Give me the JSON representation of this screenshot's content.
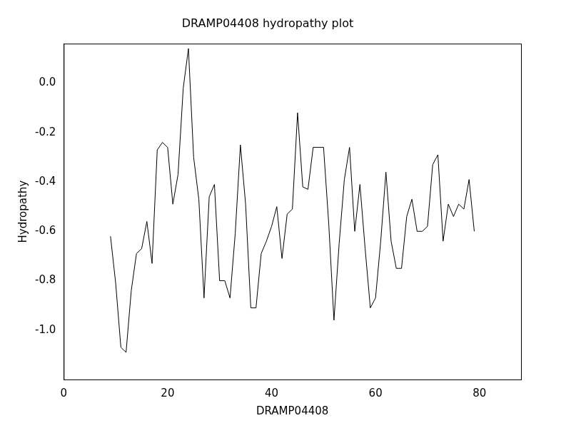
{
  "chart_data": {
    "type": "line",
    "title": "DRAMP04408 hydropathy plot",
    "x_label": "DRAMP04408",
    "y_label": "Hydropathy",
    "x": [
      9,
      10,
      11,
      12,
      13,
      14,
      15,
      16,
      17,
      18,
      19,
      20,
      21,
      22,
      23,
      24,
      25,
      26,
      27,
      28,
      29,
      30,
      31,
      32,
      33,
      34,
      35,
      36,
      37,
      38,
      39,
      40,
      41,
      42,
      43,
      44,
      45,
      46,
      47,
      48,
      49,
      50,
      51,
      52,
      53,
      54,
      55,
      56,
      57,
      58,
      59,
      60,
      61,
      62,
      63,
      64,
      65,
      66,
      67,
      68,
      69,
      70,
      71,
      72,
      73,
      74,
      75,
      76,
      77,
      78,
      79
    ],
    "values": [
      -0.62,
      -0.81,
      -1.07,
      -1.09,
      -0.84,
      -0.69,
      -0.67,
      -0.56,
      -0.73,
      -0.27,
      -0.24,
      -0.26,
      -0.49,
      -0.37,
      -0.02,
      0.14,
      -0.3,
      -0.47,
      -0.87,
      -0.46,
      -0.41,
      -0.8,
      -0.8,
      -0.87,
      -0.61,
      -0.25,
      -0.49,
      -0.91,
      -0.91,
      -0.69,
      -0.64,
      -0.58,
      -0.5,
      -0.71,
      -0.53,
      -0.51,
      -0.12,
      -0.42,
      -0.43,
      -0.26,
      -0.26,
      -0.26,
      -0.57,
      -0.96,
      -0.65,
      -0.39,
      -0.26,
      -0.6,
      -0.41,
      -0.67,
      -0.91,
      -0.87,
      -0.64,
      -0.36,
      -0.64,
      -0.75,
      -0.75,
      -0.54,
      -0.47,
      -0.6,
      -0.6,
      -0.58,
      -0.33,
      -0.29,
      -0.64,
      -0.49,
      -0.54,
      -0.49,
      -0.51,
      -0.39,
      -0.6
    ],
    "color": "#000000",
    "xlim": [
      0,
      88
    ],
    "xticks": [
      0,
      20,
      40,
      60,
      80
    ],
    "ylim": [
      -1.2,
      0.16
    ],
    "yticks": [
      {
        "value": -1.0,
        "label": "-1.0"
      },
      -0.8,
      -0.6,
      -0.4,
      -0.2,
      {
        "value": 0.0,
        "label": "0.0"
      }
    ],
    "grid": false
  }
}
